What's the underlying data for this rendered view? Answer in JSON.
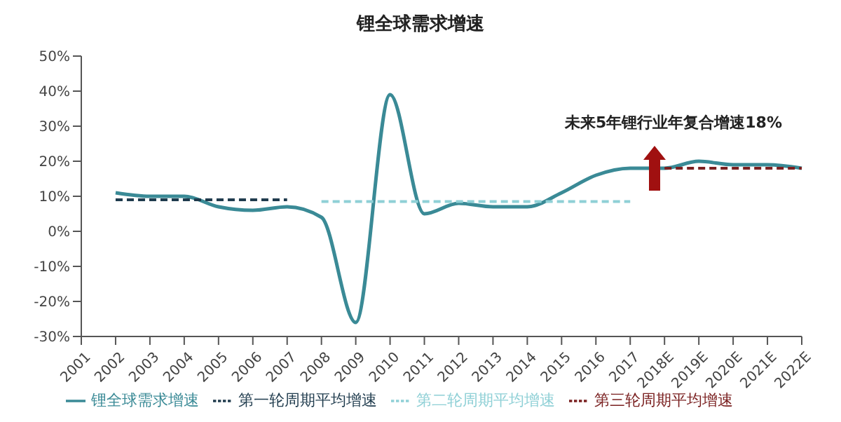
{
  "chart_data": {
    "type": "line",
    "title": "锂全球需求增速",
    "categories": [
      "2001",
      "2002",
      "2003",
      "2004",
      "2005",
      "2006",
      "2007",
      "2008",
      "2009",
      "2010",
      "2011",
      "2012",
      "2013",
      "2014",
      "2015",
      "2016",
      "2017",
      "2018E",
      "2019E",
      "2020E",
      "2021E",
      "2022E"
    ],
    "series": [
      {
        "name": "锂全球需求增速",
        "color": "#3a8a96",
        "line_style": "solid",
        "values": [
          null,
          11,
          10,
          10,
          7,
          6,
          7,
          4,
          -26,
          39,
          5,
          8,
          7,
          7,
          11,
          16,
          18,
          18,
          20,
          19,
          19,
          18
        ]
      },
      {
        "name": "第一轮周期平均增速",
        "color": "#1f3b4d",
        "line_style": "dashed",
        "values": [
          null,
          9,
          9,
          9,
          9,
          9,
          9,
          null,
          null,
          null,
          null,
          null,
          null,
          null,
          null,
          null,
          null,
          null,
          null,
          null,
          null,
          null
        ]
      },
      {
        "name": "第二轮周期平均增速",
        "color": "#8fd0d6",
        "line_style": "dashed",
        "values": [
          null,
          null,
          null,
          null,
          null,
          null,
          null,
          8.5,
          8.5,
          8.5,
          8.5,
          8.5,
          8.5,
          8.5,
          8.5,
          8.5,
          8.5,
          null,
          null,
          null,
          null,
          null
        ]
      },
      {
        "name": "第三轮周期平均增速",
        "color": "#7a2020",
        "line_style": "dashed",
        "values": [
          null,
          null,
          null,
          null,
          null,
          null,
          null,
          null,
          null,
          null,
          null,
          null,
          null,
          null,
          null,
          null,
          null,
          18,
          18,
          18,
          18,
          18
        ]
      }
    ],
    "ylim": [
      -30,
      50
    ],
    "yticks": [
      {
        "value": -30,
        "label": "-30%"
      },
      {
        "value": -20,
        "label": "-20%"
      },
      {
        "value": -10,
        "label": "-10%"
      },
      {
        "value": 0,
        "label": "0%"
      },
      {
        "value": 10,
        "label": "10%"
      },
      {
        "value": 20,
        "label": "20%"
      },
      {
        "value": 30,
        "label": "30%"
      },
      {
        "value": 40,
        "label": "40%"
      },
      {
        "value": 50,
        "label": "50%"
      }
    ],
    "annotations": [
      "未来5年锂行业年复合增速18%"
    ],
    "grid": false,
    "legend": "bottom",
    "marker": "none"
  }
}
